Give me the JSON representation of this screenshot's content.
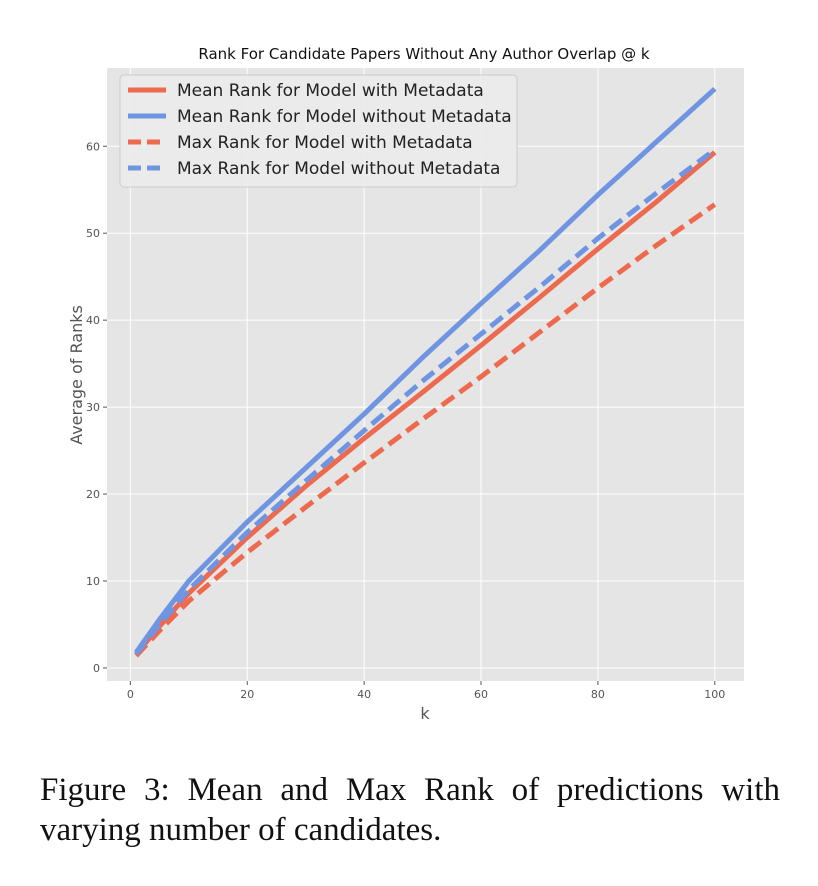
{
  "figure": {
    "caption": "Figure 3:  Mean and Max Rank of predictions with varying number of candidates."
  },
  "chart_data": {
    "type": "line",
    "title": "Rank For Candidate Papers Without Any Author Overlap @ k",
    "xlabel": "k",
    "ylabel": "Average of Ranks",
    "xlim": [
      -4,
      105
    ],
    "ylim": [
      -1.5,
      69
    ],
    "xticks": [
      0,
      20,
      40,
      60,
      80,
      100
    ],
    "yticks": [
      0,
      10,
      20,
      30,
      40,
      50,
      60
    ],
    "grid": true,
    "legend_position": "top-left",
    "background_color": "#e5e5e5",
    "grid_color": "#ffffff",
    "x": [
      1,
      5,
      10,
      20,
      30,
      40,
      50,
      60,
      70,
      80,
      90,
      100
    ],
    "series": [
      {
        "name": "Mean Rank for Model with Metadata",
        "color": "#ee6a4e",
        "dash": "solid",
        "values": [
          1.6,
          4.8,
          8.6,
          15.0,
          20.9,
          26.4,
          31.7,
          37.1,
          42.6,
          48.2,
          53.6,
          59.3
        ]
      },
      {
        "name": "Mean Rank for Model without Metadata",
        "color": "#6f95e2",
        "dash": "solid",
        "values": [
          1.8,
          5.6,
          10.0,
          16.8,
          23.0,
          29.2,
          35.7,
          41.9,
          48.0,
          54.4,
          60.5,
          66.6
        ]
      },
      {
        "name": "Max Rank for Model with Metadata",
        "color": "#ee6a4e",
        "dash": "dashed",
        "values": [
          1.4,
          4.3,
          7.7,
          13.3,
          18.5,
          23.6,
          28.6,
          33.5,
          38.6,
          43.7,
          48.6,
          53.3
        ]
      },
      {
        "name": "Max Rank for Model without Metadata",
        "color": "#6f95e2",
        "dash": "dashed",
        "values": [
          1.6,
          5.0,
          9.0,
          15.6,
          21.5,
          27.3,
          33.0,
          38.4,
          43.8,
          49.4,
          54.6,
          59.6
        ]
      }
    ]
  }
}
